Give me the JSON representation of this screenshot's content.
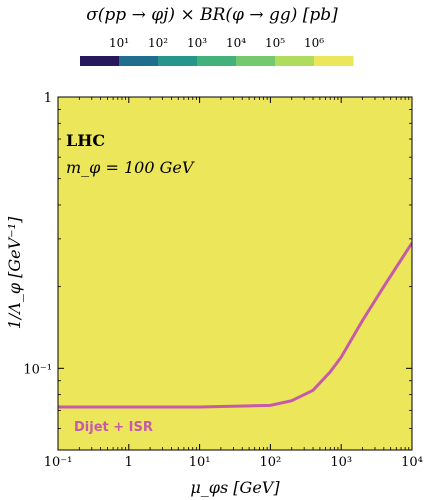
{
  "chart_data": {
    "type": "heatmap",
    "title": "σ(pp → φj) × BR(φ → gg) [pb]",
    "colorbar": {
      "tick_labels": [
        "10¹",
        "10²",
        "10³",
        "10⁴",
        "10⁵",
        "10⁶"
      ],
      "tick_values": [
        10.0,
        100.0,
        1000.0,
        10000.0,
        100000.0,
        1000000.0
      ],
      "colors": [
        "#26185a",
        "#216d8e",
        "#26968a",
        "#42b27a",
        "#74c86f",
        "#b0dc5d",
        "#ebe65a"
      ]
    },
    "xlabel": "μ_φs [GeV]",
    "ylabel": "1/Λ_φ [GeV⁻¹]",
    "xscale": "log",
    "yscale": "log",
    "xlim": [
      0.1,
      10000
    ],
    "ylim": [
      0.05,
      1
    ],
    "x_tick_labels": [
      "10⁻¹",
      "1",
      "10¹",
      "10²",
      "10³",
      "10⁴"
    ],
    "x_tick_values": [
      0.1,
      1,
      10,
      100,
      1000,
      10000
    ],
    "y_tick_labels": [
      "1",
      "10⁻¹"
    ],
    "y_tick_values": [
      1,
      0.1
    ],
    "annotations": [
      {
        "text": "LHC",
        "position": "top-left"
      },
      {
        "text": "m_φ = 100 GeV",
        "position": "top-left"
      }
    ],
    "regions": [
      {
        "color": "#ebe65a",
        "boundary": "flat at 1/Λ ≈ 0.76 for μ ≲ 1500 GeV, dropping to top edge near 6000 GeV"
      },
      {
        "color": "#b0dc5d",
        "boundary": "flat at 1/Λ ≈ 0.25 for μ ≲ 100 GeV, rising to top edge near 10000 GeV"
      },
      {
        "color": "#74c86f",
        "boundary": "flat at 1/Λ ≈ 0.08 for μ ≲ 100 GeV, rising to ≈ 0.26 at 10000 GeV"
      },
      {
        "color": "#42b27a",
        "boundary": "rising from 1/Λ ≈ 0.05 near μ ≈ 700 GeV"
      },
      {
        "color": "#26968a",
        "boundary": "corner region from μ ≈ 1500 GeV"
      },
      {
        "color": "#216d8e",
        "boundary": "corner region from μ ≈ 3000 GeV"
      }
    ],
    "series": [
      {
        "name": "Dijet + ISR",
        "type": "line",
        "color": "#c65aa8",
        "x": [
          0.1,
          1,
          10,
          100,
          200,
          400,
          700,
          1000,
          2000,
          4000,
          10000
        ],
        "y": [
          0.072,
          0.072,
          0.072,
          0.073,
          0.076,
          0.083,
          0.097,
          0.11,
          0.15,
          0.2,
          0.29
        ]
      }
    ]
  }
}
